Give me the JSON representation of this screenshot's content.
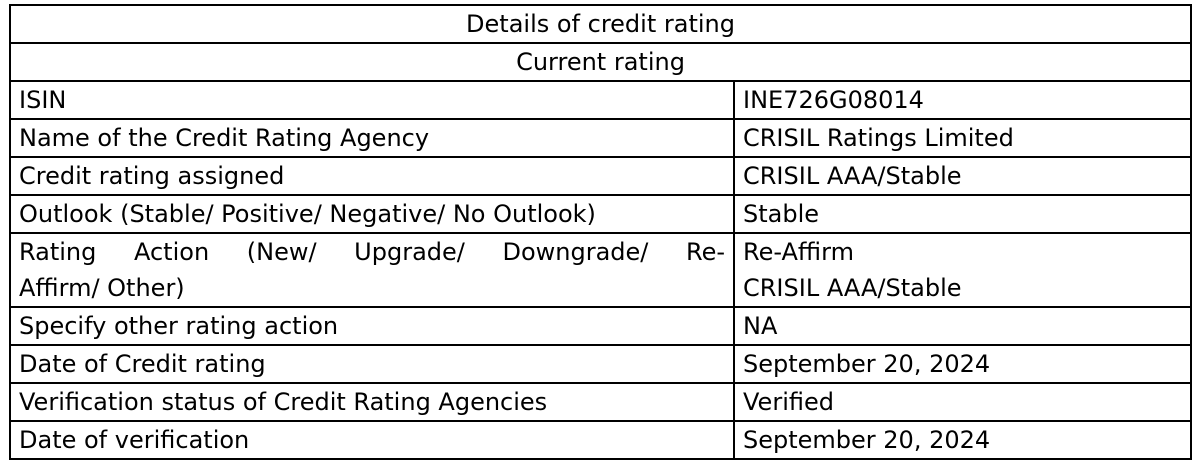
{
  "table": {
    "title": "Details of credit rating",
    "subtitle": "Current rating",
    "rows": [
      {
        "label": "ISIN",
        "value": "INE726G08014"
      },
      {
        "label": "Name of the Credit Rating Agency",
        "value": "CRISIL Ratings Limited"
      },
      {
        "label": "Credit rating assigned",
        "value": "CRISIL AAA/Stable"
      },
      {
        "label": "Outlook (Stable/ Positive/ Negative/ No Outlook)",
        "value": "Stable"
      },
      {
        "label_line1": "Rating Action (New/ Upgrade/ Downgrade/ Re-",
        "label_line2": "Affirm/ Other)",
        "value_line1": "Re-Affirm",
        "value_line2": "CRISIL AAA/Stable"
      },
      {
        "label": "Specify other rating action",
        "value": "NA"
      },
      {
        "label": "Date of Credit rating",
        "value": "September 20, 2024"
      },
      {
        "label": "Verification status of Credit Rating Agencies",
        "value": "Verified"
      },
      {
        "label": "Date of verification",
        "value": "September 20, 2024"
      }
    ]
  }
}
